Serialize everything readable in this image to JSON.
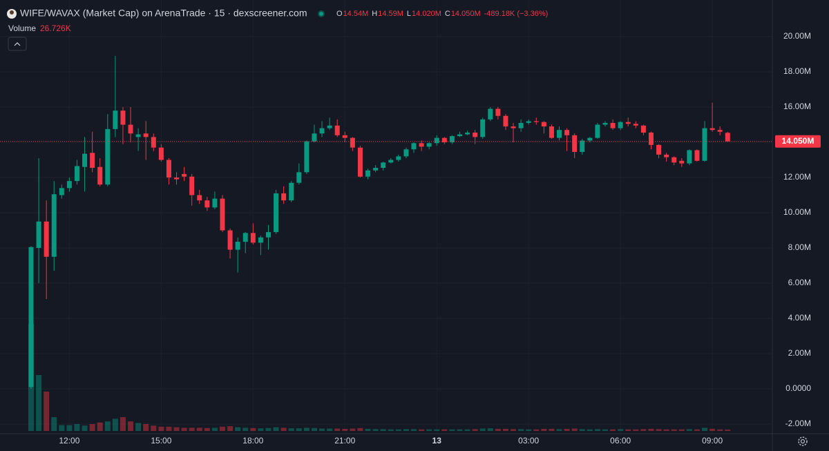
{
  "chart_data": {
    "type": "candlestick",
    "title": "WIFE/WAVAX (Market Cap) on ArenaTrade · 15 · dexscreener.com",
    "ohlc_legend": [
      {
        "key": "O",
        "value": "14.54M"
      },
      {
        "key": "H",
        "value": "14.59M"
      },
      {
        "key": "L",
        "value": "14.020M"
      },
      {
        "key": "C",
        "value": "14.050M"
      }
    ],
    "change": "-489.18K (−3.36%)",
    "volume_title": "Volume",
    "volume_last": "26.726K",
    "colors": {
      "up": "#089981",
      "down": "#f23645"
    },
    "categories": [
      null,
      null,
      null,
      null,
      null,
      "12:00",
      null,
      null,
      null,
      null,
      null,
      null,
      null,
      null,
      null,
      null,
      null,
      "15:00",
      null,
      null,
      null,
      null,
      null,
      null,
      null,
      null,
      null,
      null,
      null,
      "18:00",
      null,
      null,
      null,
      null,
      null,
      null,
      null,
      null,
      null,
      null,
      null,
      "21:00",
      null,
      null,
      null,
      null,
      null,
      null,
      null,
      null,
      null,
      null,
      null,
      "13",
      null,
      null,
      null,
      null,
      null,
      null,
      null,
      null,
      null,
      null,
      null,
      "03:00",
      null,
      null,
      null,
      null,
      null,
      null,
      null,
      null,
      null,
      null,
      null,
      "06:00",
      null,
      null,
      null,
      null,
      null,
      null,
      null,
      null,
      null,
      null,
      null,
      "09:00",
      null,
      null
    ],
    "open": [
      0.1,
      8.0,
      9.5,
      7.5,
      11.0,
      11.4,
      11.8,
      12.6,
      13.4,
      12.6,
      11.6,
      14.75,
      15.8,
      15.0,
      14.3,
      14.5,
      14.3,
      13.7,
      13.0,
      12.0,
      12.2,
      12.05,
      11.0,
      10.7,
      10.3,
      10.8,
      9.0,
      7.9,
      8.35,
      8.85,
      8.3,
      8.6,
      8.9,
      11.1,
      10.7,
      11.7,
      12.3,
      14.05,
      14.5,
      14.8,
      14.95,
      14.4,
      14.25,
      13.7,
      12.05,
      12.4,
      12.55,
      12.85,
      13.0,
      13.2,
      13.6,
      13.95,
      13.75,
      13.95,
      14.25,
      14.0,
      14.35,
      14.45,
      14.55,
      14.3,
      15.3,
      15.9,
      15.5,
      14.9,
      14.8,
      15.1,
      15.2,
      15.15,
      14.9,
      14.25,
      14.7,
      14.4,
      13.45,
      14.1,
      14.25,
      15.0,
      15.1,
      14.8,
      15.15,
      15.05,
      14.95,
      14.55,
      13.85,
      13.3,
      13.15,
      12.95,
      12.8,
      13.55,
      12.95,
      14.8,
      14.7,
      14.54
    ],
    "high": [
      8.1,
      13.1,
      10.7,
      11.8,
      11.6,
      12.0,
      13.0,
      14.3,
      14.6,
      13.1,
      15.6,
      18.9,
      16.0,
      16.0,
      14.8,
      15.2,
      14.5,
      13.9,
      13.1,
      12.3,
      12.6,
      12.2,
      11.3,
      10.9,
      11.2,
      11.0,
      9.1,
      8.6,
      8.9,
      9.4,
      8.7,
      9.3,
      11.3,
      11.5,
      11.8,
      12.8,
      14.1,
      15.0,
      15.2,
      15.4,
      15.3,
      14.6,
      14.3,
      13.8,
      12.5,
      12.7,
      12.9,
      13.1,
      13.3,
      13.7,
      14.0,
      14.1,
      14.0,
      14.4,
      14.3,
      14.4,
      14.6,
      14.65,
      14.7,
      15.4,
      16.0,
      16.0,
      15.6,
      15.1,
      15.3,
      15.3,
      15.4,
      15.2,
      15.0,
      14.9,
      14.8,
      14.5,
      14.2,
      14.3,
      15.1,
      15.2,
      15.3,
      15.2,
      15.4,
      15.2,
      15.0,
      14.6,
      13.9,
      13.4,
      13.2,
      13.1,
      13.6,
      13.6,
      15.2,
      16.25,
      14.9,
      14.59
    ],
    "low": [
      0,
      6.0,
      5.1,
      6.7,
      10.8,
      11.2,
      11.6,
      11.2,
      12.3,
      11.5,
      11.5,
      14.3,
      13.9,
      14.0,
      13.5,
      13.0,
      13.5,
      12.9,
      11.6,
      11.6,
      11.8,
      10.4,
      10.5,
      10.1,
      10.2,
      8.9,
      7.4,
      6.6,
      7.7,
      8.2,
      7.6,
      7.9,
      8.8,
      10.5,
      10.6,
      11.6,
      12.2,
      14.0,
      14.3,
      14.7,
      14.3,
      14.0,
      13.5,
      12.0,
      11.9,
      12.3,
      12.4,
      12.8,
      12.9,
      13.1,
      13.4,
      13.5,
      13.6,
      13.8,
      13.9,
      13.9,
      14.3,
      14.4,
      13.9,
      14.2,
      15.2,
      15.3,
      14.7,
      14.0,
      14.6,
      15.0,
      15.0,
      14.5,
      14.2,
      14.1,
      13.5,
      13.1,
      13.3,
      14.0,
      14.2,
      14.9,
      14.7,
      14.7,
      14.9,
      14.8,
      14.4,
      13.6,
      13.1,
      12.9,
      12.7,
      12.6,
      12.7,
      12.9,
      12.9,
      14.6,
      14.4,
      14.02
    ],
    "close": [
      8.05,
      9.5,
      7.5,
      11.05,
      11.4,
      11.8,
      12.65,
      13.35,
      12.55,
      11.6,
      14.75,
      15.8,
      15.0,
      14.5,
      14.45,
      14.3,
      13.7,
      13.0,
      12.0,
      11.9,
      12.05,
      11.0,
      10.7,
      10.3,
      10.8,
      9.0,
      7.9,
      8.35,
      8.85,
      8.3,
      8.6,
      8.9,
      11.1,
      10.7,
      11.7,
      12.3,
      14.05,
      14.5,
      14.8,
      14.95,
      14.4,
      14.25,
      13.7,
      12.05,
      12.4,
      12.55,
      12.85,
      13.0,
      13.2,
      13.6,
      13.95,
      13.75,
      13.95,
      14.25,
      14.0,
      14.35,
      14.45,
      14.55,
      14.3,
      15.3,
      15.9,
      15.5,
      14.9,
      14.8,
      15.1,
      15.2,
      15.15,
      14.9,
      14.25,
      14.7,
      14.4,
      13.45,
      14.1,
      14.25,
      15.0,
      15.1,
      14.8,
      15.15,
      15.05,
      14.95,
      14.55,
      13.85,
      13.3,
      13.15,
      12.85,
      12.8,
      13.55,
      12.95,
      14.8,
      14.7,
      14.6,
      14.05
    ],
    "volume": [
      2010,
      1050,
      740,
      260,
      110,
      110,
      130,
      100,
      130,
      160,
      180,
      230,
      260,
      180,
      150,
      130,
      100,
      80,
      80,
      70,
      60,
      60,
      60,
      55,
      60,
      80,
      90,
      70,
      60,
      55,
      50,
      55,
      70,
      60,
      50,
      50,
      60,
      55,
      45,
      45,
      45,
      40,
      45,
      55,
      40,
      35,
      35,
      30,
      30,
      35,
      35,
      30,
      30,
      30,
      30,
      30,
      30,
      30,
      35,
      45,
      50,
      40,
      40,
      35,
      35,
      30,
      30,
      40,
      40,
      35,
      40,
      45,
      35,
      30,
      35,
      30,
      30,
      35,
      30,
      30,
      35,
      40,
      35,
      30,
      30,
      30,
      35,
      30,
      60,
      40,
      30,
      26.726
    ],
    "ylim": [
      -2.55,
      22.08
    ],
    "yticks": [
      {
        "value": 20,
        "label": "20.00M"
      },
      {
        "value": 18,
        "label": "18.00M"
      },
      {
        "value": 16,
        "label": "16.00M"
      },
      {
        "value": 14,
        "label": "14.00M"
      },
      {
        "value": 12,
        "label": "12.00M"
      },
      {
        "value": 10,
        "label": "10.00M"
      },
      {
        "value": 8,
        "label": "8.00M"
      },
      {
        "value": 6,
        "label": "6.00M"
      },
      {
        "value": 4,
        "label": "4.00M"
      },
      {
        "value": 2,
        "label": "2.00M"
      },
      {
        "value": 0,
        "label": "0.0000"
      },
      {
        "value": -2,
        "label": "-2.00M"
      }
    ],
    "last_price": {
      "value": 14.05,
      "label": "14.050M"
    },
    "grid": true
  }
}
